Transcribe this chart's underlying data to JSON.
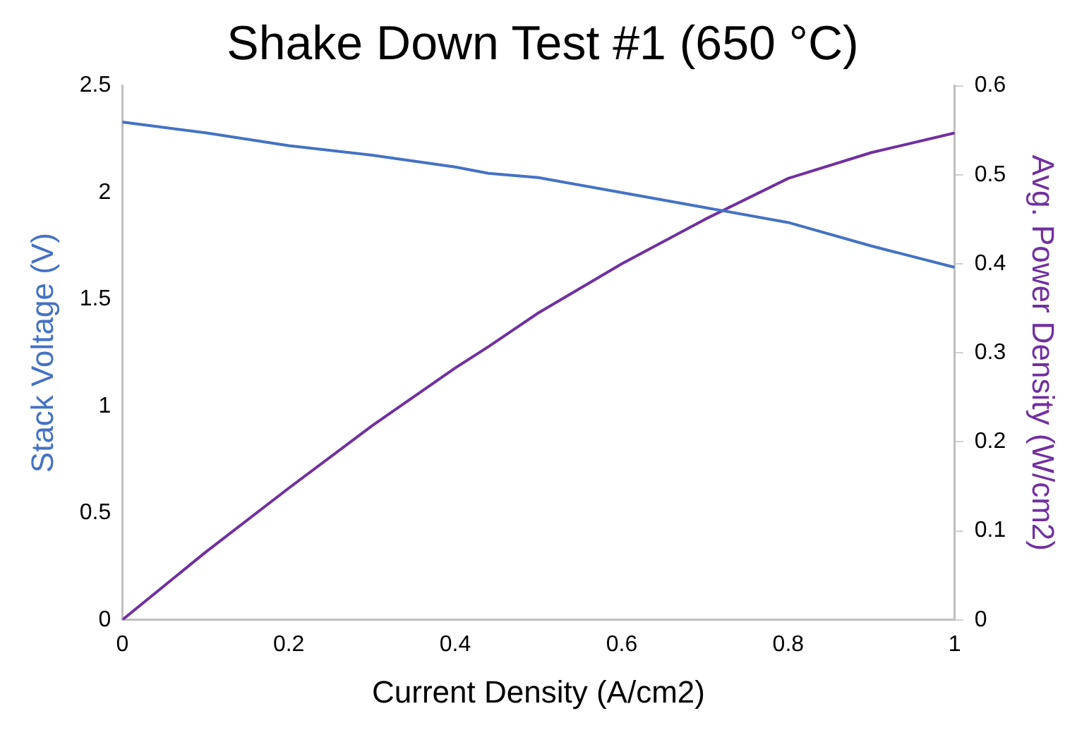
{
  "chart_data": {
    "type": "line",
    "title": "Shake Down Test #1 (650 °C)",
    "xlabel": "Current Density (A/cm2)",
    "ylabel": "Stack Voltage (V)",
    "y2label": "Avg. Power Density (W/cm2)",
    "x": [
      0,
      0.1,
      0.2,
      0.3,
      0.4,
      0.44,
      0.5,
      0.6,
      0.7,
      0.8,
      0.9,
      1
    ],
    "series": [
      {
        "color": "#4472c4",
        "values": [
          2.33,
          2.28,
          2.22,
          2.175,
          2.12,
          2.09,
          2.07,
          2.0,
          1.93,
          1.86,
          1.75,
          1.65
        ]
      },
      {
        "color": "#7030a0",
        "axis": "y2",
        "values": [
          0,
          0.076,
          0.148,
          0.218,
          0.283,
          0.307,
          0.345,
          0.4,
          0.45,
          0.496,
          0.525,
          0.547
        ]
      }
    ],
    "xlim": [
      0,
      1
    ],
    "xticks": [
      0,
      0.2,
      0.4,
      0.6,
      0.8,
      1
    ],
    "ylim": [
      0,
      2.5
    ],
    "yticks": [
      0,
      0.5,
      1,
      1.5,
      2,
      2.5
    ],
    "y2lim": [
      0,
      0.6
    ],
    "y2ticks": [
      0,
      0.1,
      0.2,
      0.3,
      0.4,
      0.5,
      0.6
    ],
    "grid": false,
    "legend": false,
    "marker": "none",
    "line_style": "solid"
  }
}
